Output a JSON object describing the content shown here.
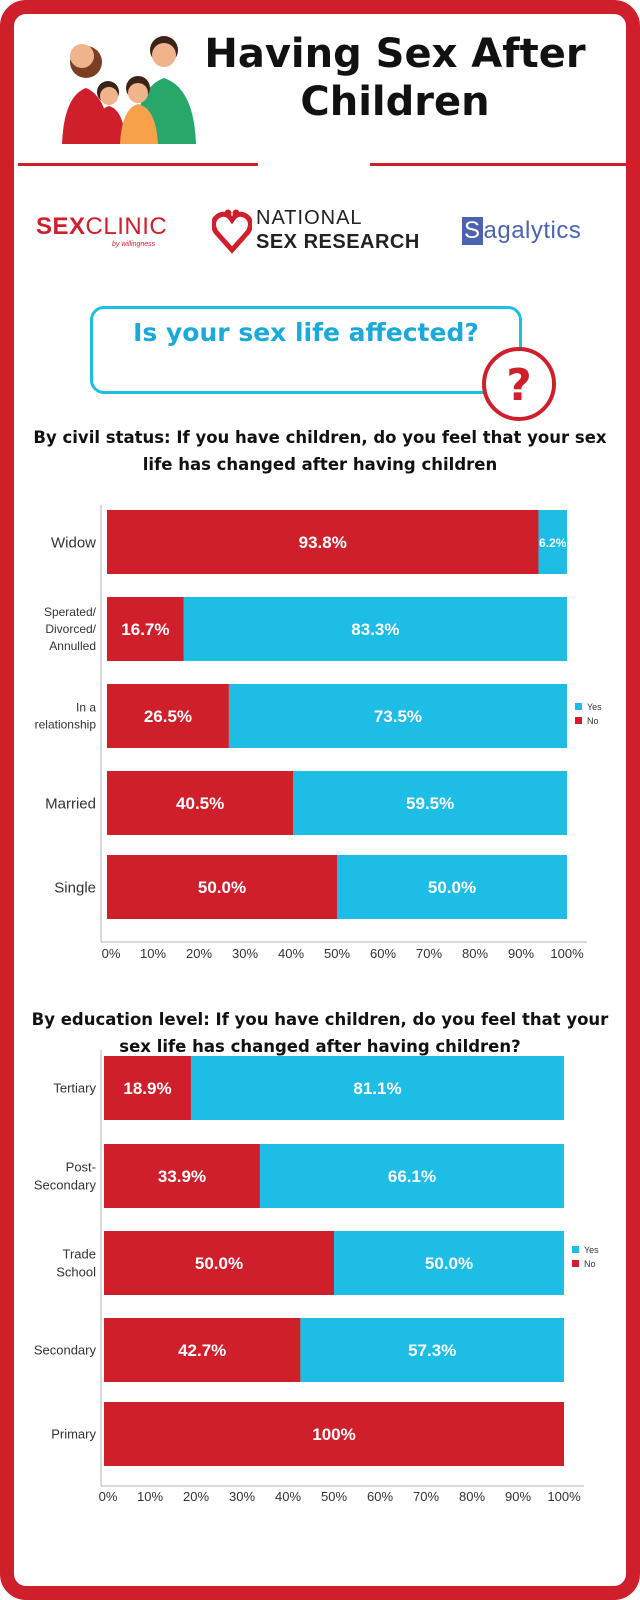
{
  "header": {
    "title": "Having Sex After Children"
  },
  "logos": {
    "sexclinic_bold": "SEX",
    "sexclinic_light": "CLINIC",
    "sexclinic_sub": "by willingness",
    "nsr_line1": "NATIONAL",
    "nsr_line2": "SEX RESEARCH",
    "sagalytics_initial": "S",
    "sagalytics_rest": "agalytics"
  },
  "question": {
    "text": "Is your sex life affected?"
  },
  "colors": {
    "no": "#cf1f2b",
    "yes": "#1dbde6",
    "frame": "#cf1f2b"
  },
  "chart_data": [
    {
      "type": "bar",
      "orientation": "horizontal",
      "stacked": true,
      "title": "By civil status: If you have children, do you feel that your sex life has changed after having children",
      "categories": [
        "Widow",
        "Sperated/ Divorced/ Annulled",
        "In a relationship",
        "Married",
        "Single"
      ],
      "series": [
        {
          "name": "No",
          "values": [
            93.8,
            16.7,
            26.5,
            40.5,
            50.0
          ]
        },
        {
          "name": "Yes",
          "values": [
            6.2,
            83.3,
            73.5,
            59.5,
            50.0
          ]
        }
      ],
      "data_labels": {
        "No": [
          "93.8%",
          "16.7%",
          "26.5%",
          "40.5%",
          "50.0%"
        ],
        "Yes": [
          "6.2%",
          "83.3%",
          "73.5%",
          "59.5%",
          "50.0%"
        ]
      },
      "xticks": [
        "0%",
        "10%",
        "20%",
        "30%",
        "40%",
        "50%",
        "60%",
        "70%",
        "80%",
        "90%",
        "100%"
      ],
      "xlim": [
        0,
        100
      ],
      "legend": [
        "Yes",
        "No"
      ],
      "legend_position": "right"
    },
    {
      "type": "bar",
      "orientation": "horizontal",
      "stacked": true,
      "title": "By education level: If you have children, do you feel that your sex life has changed after having children?",
      "categories": [
        "Tertiary",
        "Post- Secondary",
        "Trade School",
        "Secondary",
        "Primary"
      ],
      "series": [
        {
          "name": "No",
          "values": [
            18.9,
            33.9,
            50.0,
            42.7,
            100
          ]
        },
        {
          "name": "Yes",
          "values": [
            81.1,
            66.1,
            50.0,
            57.3,
            0
          ]
        }
      ],
      "data_labels": {
        "No": [
          "18.9%",
          "33.9%",
          "50.0%",
          "42.7%",
          "100%"
        ],
        "Yes": [
          "81.1%",
          "66.1%",
          "50.0%",
          "57.3%",
          ""
        ]
      },
      "xticks": [
        "0%",
        "10%",
        "20%",
        "30%",
        "40%",
        "50%",
        "60%",
        "70%",
        "80%",
        "90%",
        "100%"
      ],
      "xlim": [
        0,
        100
      ],
      "legend": [
        "Yes",
        "No"
      ],
      "legend_position": "right"
    }
  ]
}
